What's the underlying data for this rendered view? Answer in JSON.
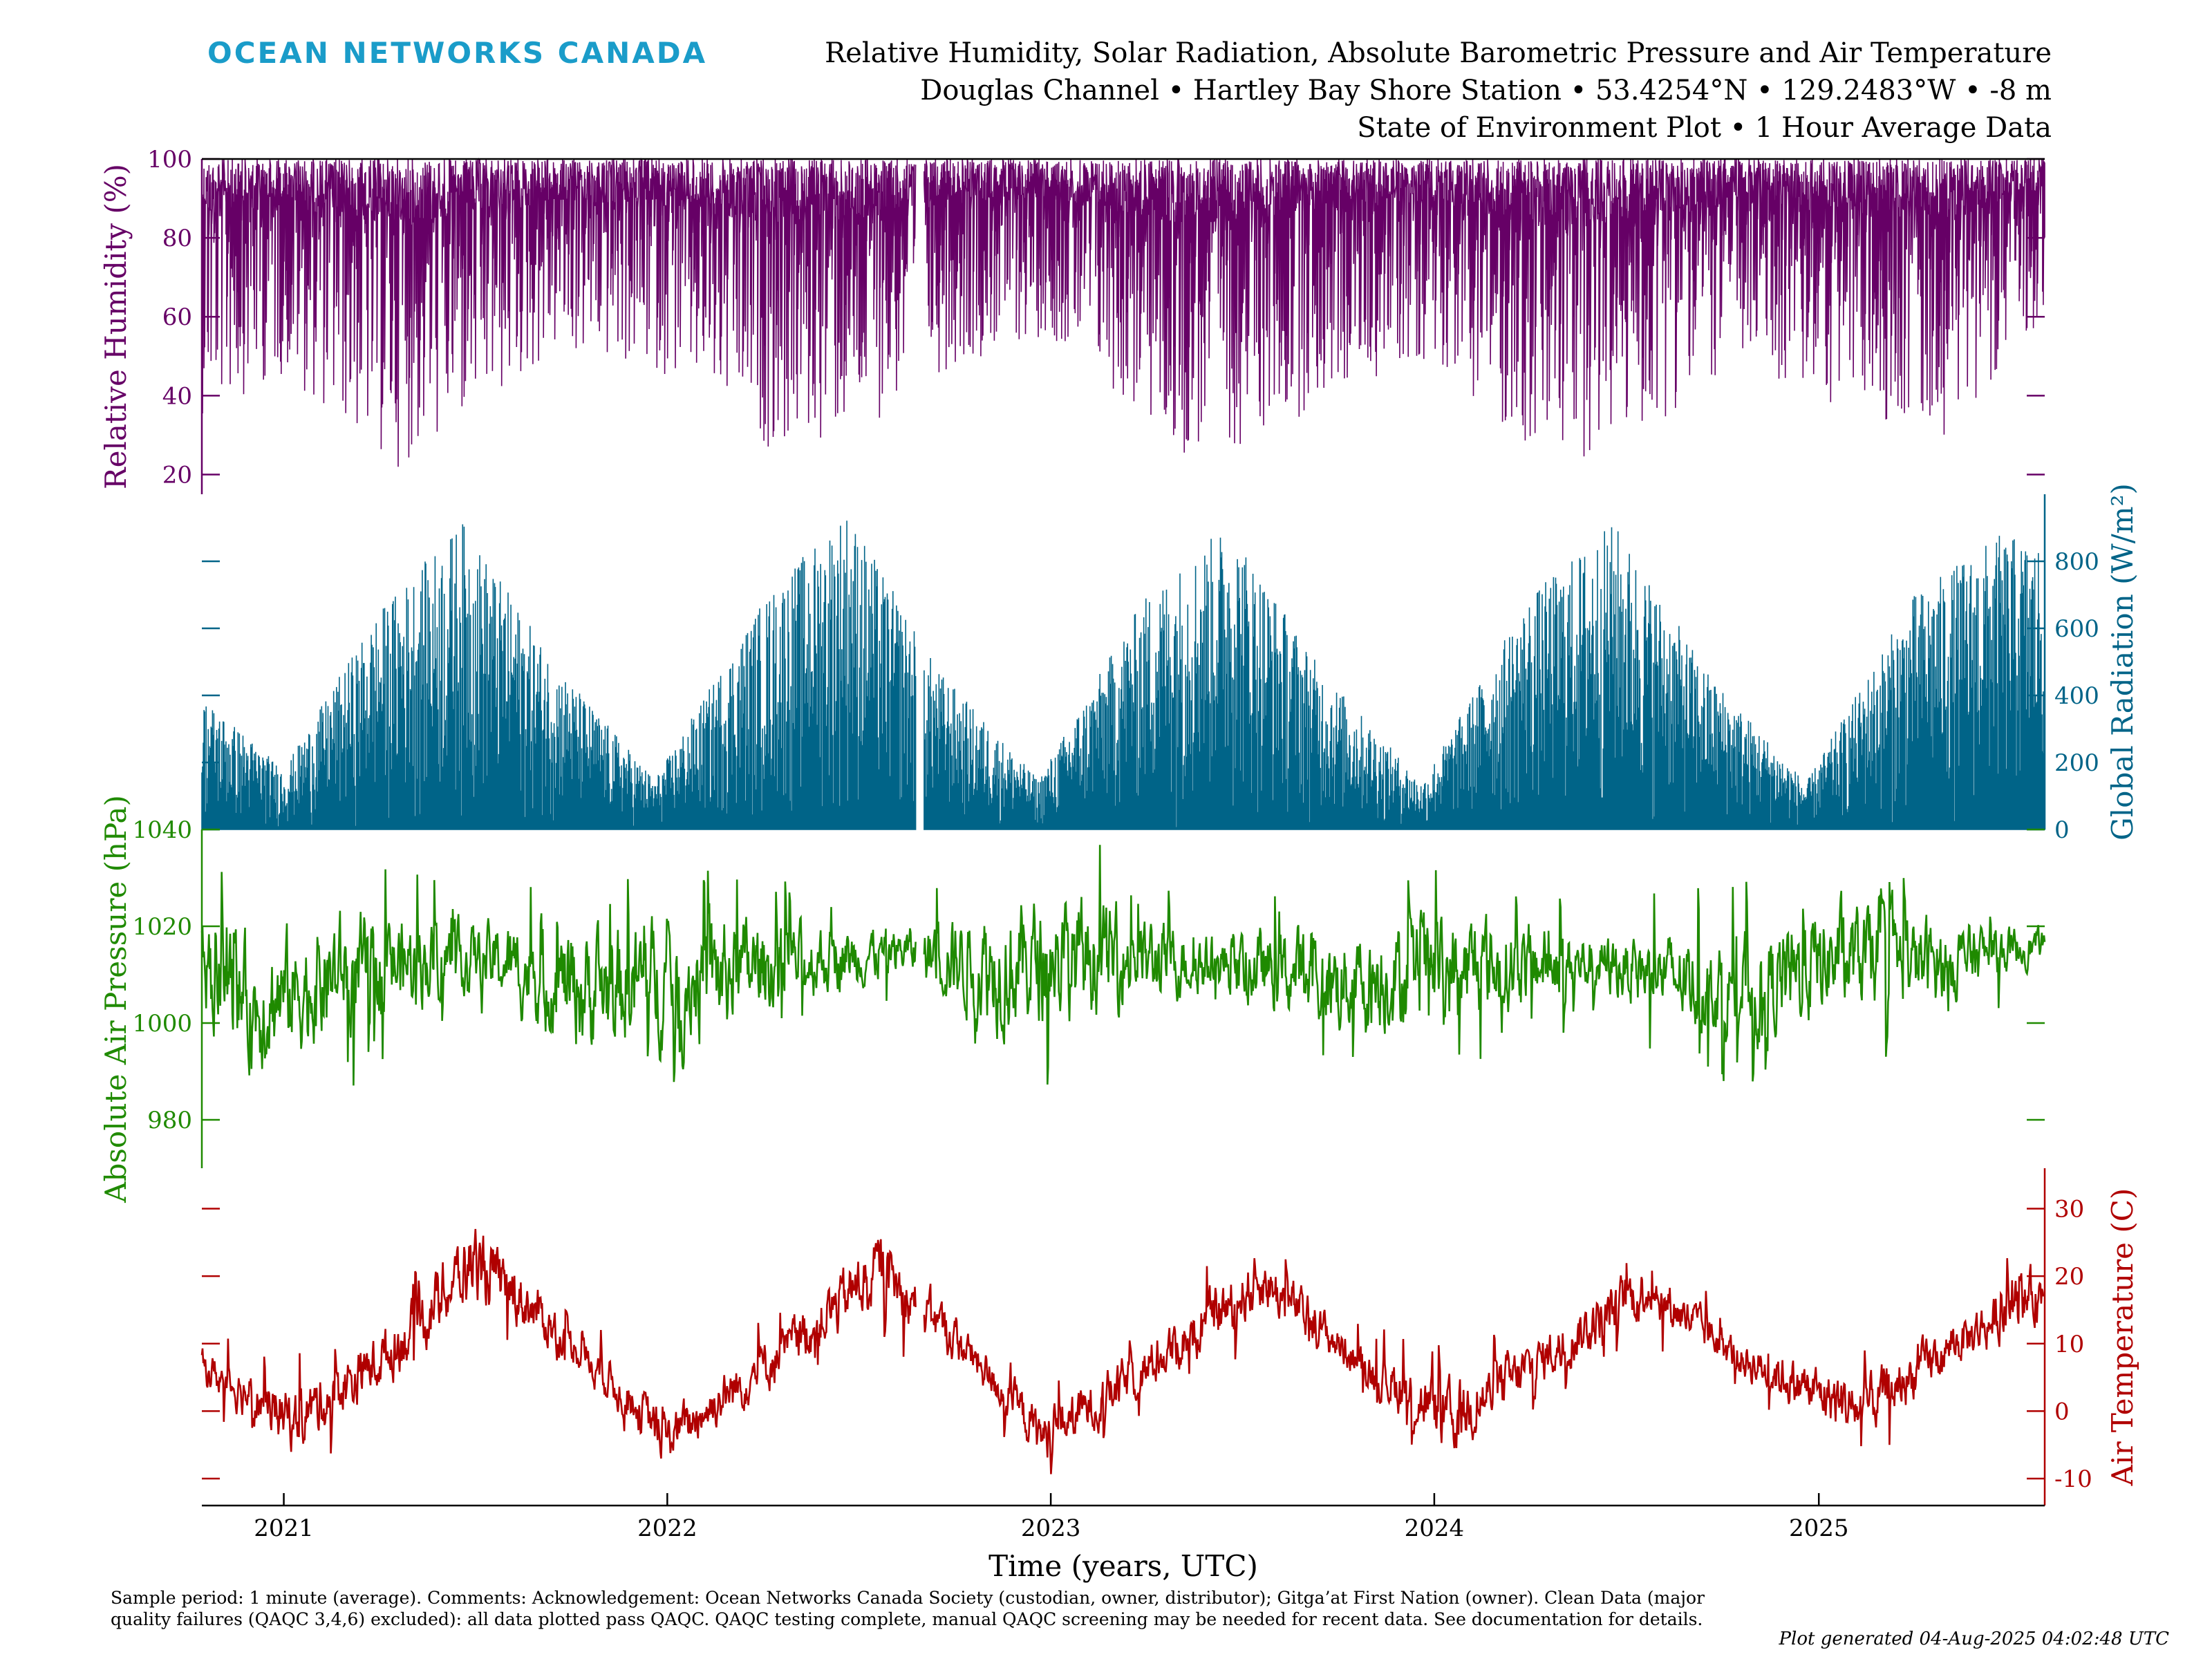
{
  "header": {
    "logo_text": "OCEAN NETWORKS CANADA",
    "title_line1": "Relative Humidity, Solar Radiation, Absolute Barometric Pressure and Air Temperature",
    "title_line2": "Douglas Channel • Hartley Bay Shore Station • 53.4254°N • 129.2483°W • -8 m",
    "title_line3": "State of Environment Plot • 1 Hour Average Data"
  },
  "footer": {
    "note": "Sample period: 1 minute (average). Comments: Acknowledgement: Ocean Networks Canada Society (custodian, owner, distributor); Gitga’at First Nation (owner). Clean Data (major quality failures (QAQC 3,4,6) excluded): all data plotted pass QAQC. QAQC testing complete, manual QAQC screening may be needed for recent data. See documentation for details.",
    "generated": "Plot generated 04-Aug-2025 04:02:48 UTC"
  },
  "chart_data": {
    "type": "line",
    "xlabel": "Time (years, UTC)",
    "x_tick_labels": [
      "2021",
      "2022",
      "2023",
      "2024",
      "2025"
    ],
    "xlim": [
      "2020-10-15",
      "2025-08-04"
    ],
    "x_gaps": [
      [
        "2022-08-26",
        "2022-09-02"
      ]
    ],
    "panels": [
      {
        "name": "humidity",
        "ylabel": "Relative Humidity (%)",
        "axis_side": "left",
        "color": "#660066",
        "style": "spiky-down",
        "ylim": [
          15,
          100
        ],
        "ticks": [
          20,
          40,
          60,
          80,
          100
        ],
        "tick_labels": [
          "20",
          "40",
          "60",
          "80",
          "100"
        ],
        "envelope": [
          {
            "x": "2020-10-15",
            "low": 35,
            "high": 100
          },
          {
            "x": "2021-01-01",
            "low": 45,
            "high": 100
          },
          {
            "x": "2021-04-15",
            "low": 21,
            "high": 100
          },
          {
            "x": "2021-07-01",
            "low": 32,
            "high": 100
          },
          {
            "x": "2021-09-15",
            "low": 50,
            "high": 100
          },
          {
            "x": "2022-01-01",
            "low": 45,
            "high": 100
          },
          {
            "x": "2022-04-15",
            "low": 25,
            "high": 100
          },
          {
            "x": "2022-07-01",
            "low": 30,
            "high": 100
          },
          {
            "x": "2022-10-01",
            "low": 48,
            "high": 100
          },
          {
            "x": "2023-01-01",
            "low": 55,
            "high": 100
          },
          {
            "x": "2023-05-01",
            "low": 24,
            "high": 100
          },
          {
            "x": "2023-07-15",
            "low": 28,
            "high": 100
          },
          {
            "x": "2023-10-15",
            "low": 42,
            "high": 100
          },
          {
            "x": "2024-01-01",
            "low": 50,
            "high": 100
          },
          {
            "x": "2024-04-15",
            "low": 20,
            "high": 100
          },
          {
            "x": "2024-07-15",
            "low": 30,
            "high": 100
          },
          {
            "x": "2024-10-15",
            "low": 48,
            "high": 100
          },
          {
            "x": "2025-01-01",
            "low": 38,
            "high": 100
          },
          {
            "x": "2025-05-01",
            "low": 30,
            "high": 100
          },
          {
            "x": "2025-08-04",
            "low": 60,
            "high": 100
          }
        ]
      },
      {
        "name": "radiation",
        "ylabel": "Global Radiation (W/m²)",
        "axis_side": "right",
        "color": "#006488",
        "style": "spiky-up",
        "ylim": [
          0,
          1000
        ],
        "ticks": [
          0,
          200,
          400,
          600,
          800
        ],
        "tick_labels": [
          "0",
          "200",
          "400",
          "600",
          "800"
        ],
        "envelope": [
          {
            "x": "2020-10-15",
            "low": 0,
            "high": 400
          },
          {
            "x": "2021-01-01",
            "low": 0,
            "high": 180
          },
          {
            "x": "2021-04-01",
            "low": 0,
            "high": 650
          },
          {
            "x": "2021-06-20",
            "low": 0,
            "high": 920
          },
          {
            "x": "2021-09-15",
            "low": 0,
            "high": 500
          },
          {
            "x": "2021-12-20",
            "low": 0,
            "high": 150
          },
          {
            "x": "2022-04-01",
            "low": 0,
            "high": 680
          },
          {
            "x": "2022-06-20",
            "low": 0,
            "high": 960
          },
          {
            "x": "2022-09-15",
            "low": 0,
            "high": 480
          },
          {
            "x": "2022-12-20",
            "low": 0,
            "high": 150
          },
          {
            "x": "2023-04-01",
            "low": 0,
            "high": 700
          },
          {
            "x": "2023-06-20",
            "low": 0,
            "high": 920
          },
          {
            "x": "2023-09-15",
            "low": 0,
            "high": 480
          },
          {
            "x": "2023-12-20",
            "low": 0,
            "high": 140
          },
          {
            "x": "2024-04-01",
            "low": 0,
            "high": 700
          },
          {
            "x": "2024-06-20",
            "low": 0,
            "high": 920
          },
          {
            "x": "2024-09-15",
            "low": 0,
            "high": 480
          },
          {
            "x": "2024-12-20",
            "low": 0,
            "high": 140
          },
          {
            "x": "2025-04-01",
            "low": 0,
            "high": 700
          },
          {
            "x": "2025-06-20",
            "low": 0,
            "high": 880
          },
          {
            "x": "2025-08-04",
            "low": 0,
            "high": 860
          }
        ]
      },
      {
        "name": "pressure",
        "ylabel": "Absolute Air Pressure (hPa)",
        "axis_side": "left",
        "color": "#1f8a00",
        "style": "noisy-line",
        "ylim": [
          970,
          1040
        ],
        "ticks": [
          980,
          1000,
          1020,
          1040
        ],
        "tick_labels": [
          "980",
          "1000",
          "1020",
          "1040"
        ],
        "envelope": [
          {
            "x": "2020-10-15",
            "low": 990,
            "high": 1033
          },
          {
            "x": "2020-12-01",
            "low": 976,
            "high": 1030
          },
          {
            "x": "2021-03-01",
            "low": 985,
            "high": 1036
          },
          {
            "x": "2021-07-01",
            "low": 1000,
            "high": 1028
          },
          {
            "x": "2021-10-15",
            "low": 980,
            "high": 1034
          },
          {
            "x": "2022-02-01",
            "low": 982,
            "high": 1037
          },
          {
            "x": "2022-05-01",
            "low": 995,
            "high": 1030
          },
          {
            "x": "2022-08-15",
            "low": 1005,
            "high": 1025
          },
          {
            "x": "2022-11-15",
            "low": 983,
            "high": 1040
          },
          {
            "x": "2023-02-01",
            "low": 988,
            "high": 1039
          },
          {
            "x": "2023-06-01",
            "low": 1000,
            "high": 1025
          },
          {
            "x": "2023-10-15",
            "low": 985,
            "high": 1032
          },
          {
            "x": "2024-02-01",
            "low": 988,
            "high": 1035
          },
          {
            "x": "2024-06-01",
            "low": 1000,
            "high": 1025
          },
          {
            "x": "2024-11-01",
            "low": 983,
            "high": 1030
          },
          {
            "x": "2025-01-15",
            "low": 990,
            "high": 1037
          },
          {
            "x": "2025-05-01",
            "low": 995,
            "high": 1030
          },
          {
            "x": "2025-08-04",
            "low": 1010,
            "high": 1023
          }
        ]
      },
      {
        "name": "temperature",
        "ylabel": "Air Temperature (C)",
        "axis_side": "right",
        "color": "#b00000",
        "style": "noisy-line",
        "ylim": [
          -14,
          36
        ],
        "ticks": [
          -10,
          0,
          10,
          20,
          30
        ],
        "tick_labels": [
          "-10",
          "0",
          "10",
          "20",
          "30"
        ],
        "envelope": [
          {
            "x": "2020-10-15",
            "low": 1,
            "high": 12
          },
          {
            "x": "2021-01-10",
            "low": -11,
            "high": 8
          },
          {
            "x": "2021-04-15",
            "low": 0,
            "high": 18
          },
          {
            "x": "2021-07-01",
            "low": 10,
            "high": 35
          },
          {
            "x": "2021-10-01",
            "low": 4,
            "high": 16
          },
          {
            "x": "2022-01-01",
            "low": -12,
            "high": 4
          },
          {
            "x": "2022-04-15",
            "low": 0,
            "high": 16
          },
          {
            "x": "2022-07-20",
            "low": 10,
            "high": 32
          },
          {
            "x": "2022-10-15",
            "low": 2,
            "high": 15
          },
          {
            "x": "2022-12-25",
            "low": -12,
            "high": 4
          },
          {
            "x": "2023-04-15",
            "low": 0,
            "high": 16
          },
          {
            "x": "2023-07-20",
            "low": 10,
            "high": 29
          },
          {
            "x": "2023-10-15",
            "low": 2,
            "high": 14
          },
          {
            "x": "2024-01-15",
            "low": -13,
            "high": 10
          },
          {
            "x": "2024-04-15",
            "low": 0,
            "high": 16
          },
          {
            "x": "2024-07-20",
            "low": 10,
            "high": 27
          },
          {
            "x": "2024-10-15",
            "low": 2,
            "high": 14
          },
          {
            "x": "2025-02-10",
            "low": -10,
            "high": 10
          },
          {
            "x": "2025-05-01",
            "low": 2,
            "high": 16
          },
          {
            "x": "2025-08-04",
            "low": 9,
            "high": 27
          }
        ]
      }
    ]
  }
}
